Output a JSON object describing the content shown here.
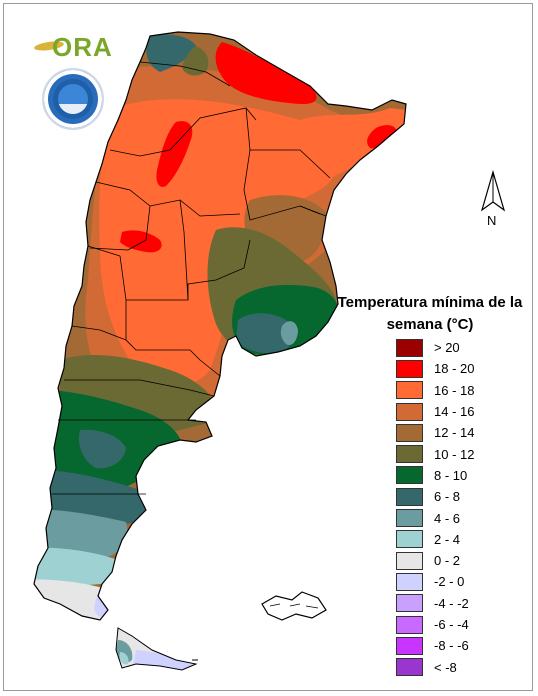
{
  "map": {
    "legend_title": "Temperatura mínima de la semana (°C)",
    "north_label": "N",
    "legend": [
      {
        "label": "> 20",
        "color": "#9b0000"
      },
      {
        "label": "18 - 20",
        "color": "#ff0000"
      },
      {
        "label": "16 - 18",
        "color": "#ff6a35"
      },
      {
        "label": "14 - 16",
        "color": "#d26a35"
      },
      {
        "label": "12 - 14",
        "color": "#a36a35"
      },
      {
        "label": "10 - 12",
        "color": "#6b6a35"
      },
      {
        "label": "8 - 10",
        "color": "#06682f"
      },
      {
        "label": "6 - 8",
        "color": "#35686a"
      },
      {
        "label": "4 - 6",
        "color": "#6a9ca0"
      },
      {
        "label": "2 - 4",
        "color": "#9ed2d2"
      },
      {
        "label": "0 - 2",
        "color": "#e6e6e6"
      },
      {
        "label": "-2 - 0",
        "color": "#cfd2ff"
      },
      {
        "label": "-4 - -2",
        "color": "#c8a0ff"
      },
      {
        "label": "-6 - -4",
        "color": "#c86aff"
      },
      {
        "label": "-8 - -6",
        "color": "#c835ff"
      },
      {
        "label": "< -8",
        "color": "#9b35cf"
      }
    ],
    "logos": {
      "ora": "ORA",
      "seal": "SMN"
    }
  }
}
